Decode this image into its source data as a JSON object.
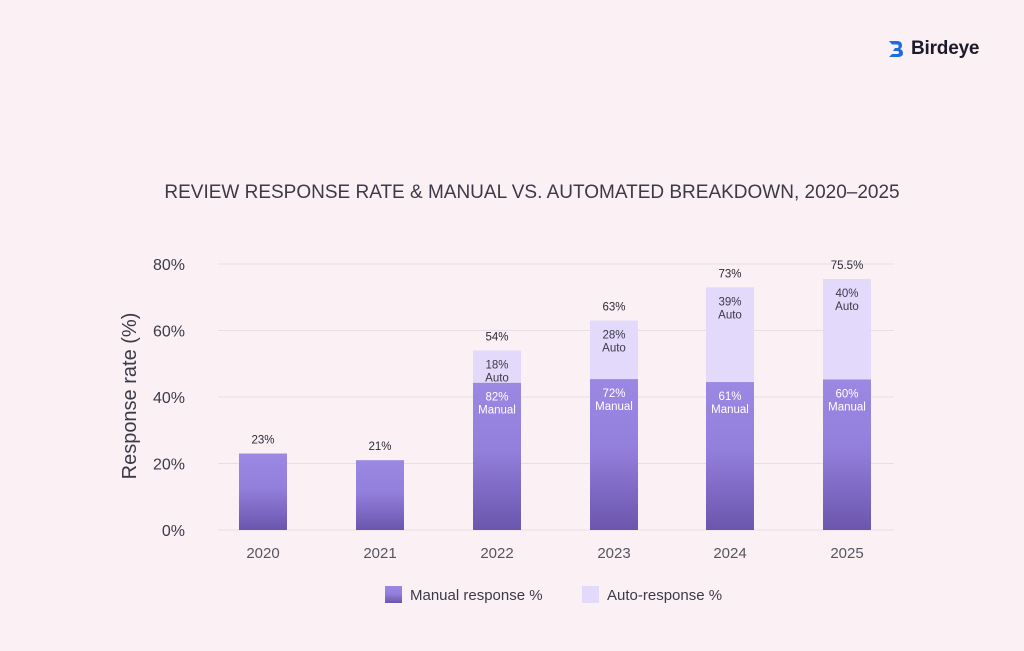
{
  "brand": {
    "name": "Birdeye",
    "color": "#1e6ce0"
  },
  "colors": {
    "manual_top": "#9a88e2",
    "manual_bottom": "#6b56ad",
    "auto": "#e3d9fb",
    "grid": "#e7dde3",
    "text": "#3a3a48",
    "background": "#fbf1f5"
  },
  "chart_data": {
    "type": "bar",
    "stacked": true,
    "title": "REVIEW RESPONSE RATE & MANUAL VS. AUTOMATED BREAKDOWN, 2020–2025",
    "xlabel": "",
    "ylabel": "Response rate (%)",
    "ylim": [
      0,
      80
    ],
    "yticks": [
      "0%",
      "20%",
      "40%",
      "60%",
      "80%"
    ],
    "grid": true,
    "legend_position": "bottom",
    "categories": [
      "2020",
      "2021",
      "2022",
      "2023",
      "2024",
      "2025"
    ],
    "series": [
      {
        "name": "Manual response %",
        "values": [
          23,
          21,
          44.3,
          45.4,
          44.5,
          45.3
        ]
      },
      {
        "name": "Auto-response %",
        "values": [
          0,
          0,
          9.7,
          17.6,
          28.5,
          30.2
        ]
      }
    ],
    "totals": [
      23,
      21,
      54,
      63,
      73,
      75.5
    ],
    "total_labels": [
      "23%",
      "21%",
      "54%",
      "63%",
      "73%",
      "75.5%"
    ],
    "manual_share_labels": [
      "",
      "",
      "82%",
      "72%",
      "61%",
      "60%"
    ],
    "auto_share_labels": [
      "",
      "",
      "18%",
      "28%",
      "39%",
      "40%"
    ],
    "manual_word": "Manual",
    "auto_word": "Auto"
  }
}
